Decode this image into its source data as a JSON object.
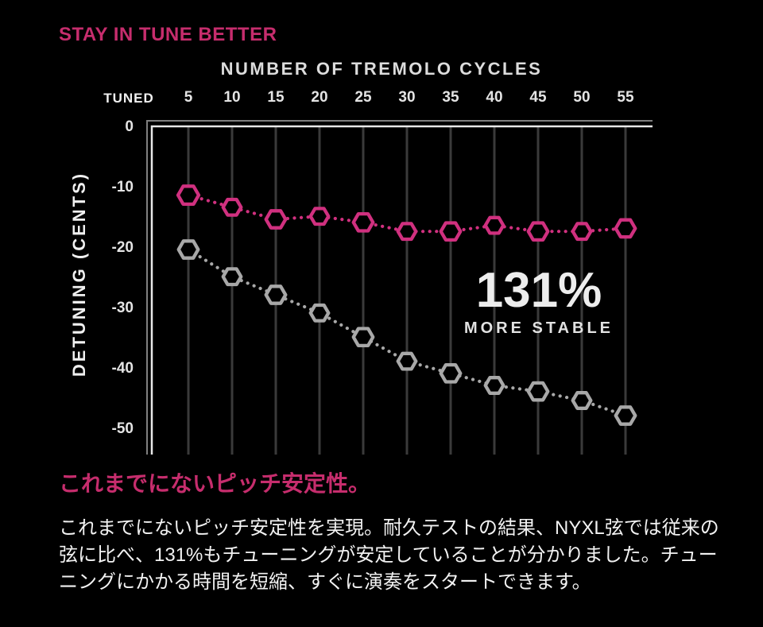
{
  "page": {
    "heading": "STAY IN TUNE BETTER",
    "jp_heading": "これまでにないピッチ安定性。",
    "jp_body": "これまでにないピッチ安定性を実現。耐久テストの結果、NYXL弦では従来の弦に比べ、131%もチューニングが安定していることが分かりました。チューニングにかかる時間を短縮、すぐに演奏をスタートできます。"
  },
  "colors": {
    "background": "#000000",
    "heading_pink": "#c62d6d",
    "series_pink": "#d0307f",
    "series_gray": "#a8a8a8",
    "gridline": "#3a3a3a",
    "axis_outer": "#808080",
    "axis_inner": "#e8e8e8",
    "chart_text": "#e4e4e4",
    "annotation_text": "#ededed",
    "body_text": "#f2f2f2"
  },
  "chart_data": {
    "type": "line",
    "title": "NUMBER OF TREMOLO CYCLES",
    "ylabel": "DETUNING (CENTS)",
    "x_start_label": "TUNED",
    "categories": [
      5,
      10,
      15,
      20,
      25,
      30,
      35,
      40,
      45,
      50,
      55
    ],
    "yticks": [
      0,
      -10,
      -20,
      -30,
      -40,
      -50
    ],
    "ylim": [
      -54,
      1
    ],
    "grid": "vertical-only",
    "legend": "none",
    "marker": "hexagon-outline",
    "line_style": "dotted",
    "series": [
      {
        "name": "nyxl",
        "color": "#d0307f",
        "values": [
          -11,
          -13,
          -15,
          -14.5,
          -15.5,
          -17,
          -17,
          -16,
          -17,
          -17,
          -16.5
        ]
      },
      {
        "name": "conventional",
        "color": "#a8a8a8",
        "values": [
          -20,
          -24.5,
          -27.5,
          -30.5,
          -34.5,
          -38.5,
          -40.5,
          -42.5,
          -43.5,
          -45,
          -47.5
        ]
      }
    ],
    "annotation": {
      "value": "131%",
      "label": "MORE STABLE"
    }
  }
}
